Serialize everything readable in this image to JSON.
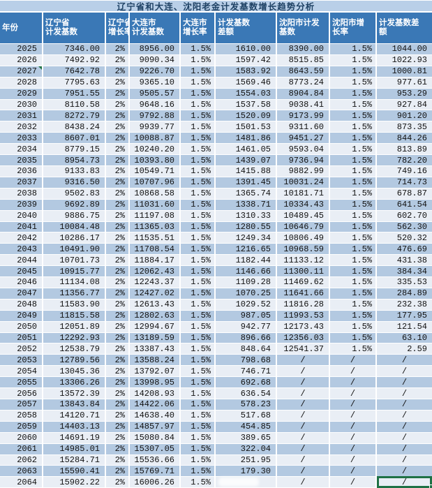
{
  "title": "辽宁省和大连、沈阳老金计发基数增长趋势分析",
  "colors": {
    "title_bg": "#B9CFE8",
    "title_text": "#1E4164",
    "header_bg": "#3A78B6",
    "header_text": "#FFFFFF",
    "row_band_dark": "#B3C9E1",
    "row_band_light": "#E9EEF5",
    "gridline": "#FFFFFF",
    "selection_green": "#1E7145",
    "comment_marker_green": "#217346"
  },
  "table": {
    "columns": [
      {
        "id": "year",
        "label_line1": "年份",
        "label_line2": ""
      },
      {
        "id": "ln_base",
        "label_line1": "辽宁省",
        "label_line2": "计发基数"
      },
      {
        "id": "ln_rate",
        "label_line1": "辽宁省",
        "label_line2": "增长率"
      },
      {
        "id": "dl_base",
        "label_line1": "大连市",
        "label_line2": "计发基数"
      },
      {
        "id": "dl_rate",
        "label_line1": "大连市",
        "label_line2": "增长率"
      },
      {
        "id": "dl_diff",
        "label_line1": "计发基数",
        "label_line2": "差额"
      },
      {
        "id": "sy_base",
        "label_line1": "沈阳市计发",
        "label_line2": "基数"
      },
      {
        "id": "sy_rate",
        "label_line1": "沈阳市增",
        "label_line2": "长率"
      },
      {
        "id": "sy_diff",
        "label_line1": "计发基数差",
        "label_line2": "额"
      }
    ],
    "rows": [
      [
        "2025",
        "7346.00",
        "2%",
        "8956.00",
        "1.5%",
        "1610.00",
        "8390.00",
        "1.5%",
        "1044.00"
      ],
      [
        "2026",
        "7492.92",
        "2%",
        "9090.34",
        "1.5%",
        "1597.42",
        "8515.85",
        "1.5%",
        "1022.93"
      ],
      [
        "2027",
        "7642.78",
        "2%",
        "9226.70",
        "1.5%",
        "1583.92",
        "8643.59",
        "1.5%",
        "1000.81"
      ],
      [
        "2028",
        "7795.63",
        "2%",
        "9365.10",
        "1.5%",
        "1569.46",
        "8773.24",
        "1.5%",
        "977.61"
      ],
      [
        "2029",
        "7951.55",
        "2%",
        "9505.57",
        "1.5%",
        "1554.03",
        "8904.84",
        "1.5%",
        "953.29"
      ],
      [
        "2030",
        "8110.58",
        "2%",
        "9648.16",
        "1.5%",
        "1537.58",
        "9038.41",
        "1.5%",
        "927.84"
      ],
      [
        "2031",
        "8272.79",
        "2%",
        "9792.88",
        "1.5%",
        "1520.09",
        "9173.99",
        "1.5%",
        "901.20"
      ],
      [
        "2032",
        "8438.24",
        "2%",
        "9939.77",
        "1.5%",
        "1501.53",
        "9311.60",
        "1.5%",
        "873.35"
      ],
      [
        "2033",
        "8607.01",
        "2%",
        "10088.87",
        "1.5%",
        "1481.86",
        "9451.27",
        "1.5%",
        "844.26"
      ],
      [
        "2034",
        "8779.15",
        "2%",
        "10240.20",
        "1.5%",
        "1461.05",
        "9593.04",
        "1.5%",
        "813.89"
      ],
      [
        "2035",
        "8954.73",
        "2%",
        "10393.80",
        "1.5%",
        "1439.07",
        "9736.94",
        "1.5%",
        "782.20"
      ],
      [
        "2036",
        "9133.83",
        "2%",
        "10549.71",
        "1.5%",
        "1415.88",
        "9882.99",
        "1.5%",
        "749.16"
      ],
      [
        "2037",
        "9316.50",
        "2%",
        "10707.96",
        "1.5%",
        "1391.45",
        "10031.24",
        "1.5%",
        "714.73"
      ],
      [
        "2038",
        "9502.83",
        "2%",
        "10868.58",
        "1.5%",
        "1365.74",
        "10181.71",
        "1.5%",
        "678.87"
      ],
      [
        "2039",
        "9692.89",
        "2%",
        "11031.60",
        "1.5%",
        "1338.71",
        "10334.43",
        "1.5%",
        "641.54"
      ],
      [
        "2040",
        "9886.75",
        "2%",
        "11197.08",
        "1.5%",
        "1310.33",
        "10489.45",
        "1.5%",
        "602.70"
      ],
      [
        "2041",
        "10084.48",
        "2%",
        "11365.03",
        "1.5%",
        "1280.55",
        "10646.79",
        "1.5%",
        "562.30"
      ],
      [
        "2042",
        "10286.17",
        "2%",
        "11535.51",
        "1.5%",
        "1249.34",
        "10806.49",
        "1.5%",
        "520.32"
      ],
      [
        "2043",
        "10491.90",
        "2%",
        "11708.54",
        "1.5%",
        "1216.65",
        "10968.59",
        "1.5%",
        "476.69"
      ],
      [
        "2044",
        "10701.73",
        "2%",
        "11884.17",
        "1.5%",
        "1182.44",
        "11133.12",
        "1.5%",
        "431.38"
      ],
      [
        "2045",
        "10915.77",
        "2%",
        "12062.43",
        "1.5%",
        "1146.66",
        "11300.11",
        "1.5%",
        "384.34"
      ],
      [
        "2046",
        "11134.08",
        "2%",
        "12243.37",
        "1.5%",
        "1109.28",
        "11469.62",
        "1.5%",
        "335.53"
      ],
      [
        "2047",
        "11356.77",
        "2%",
        "12427.02",
        "1.5%",
        "1070.25",
        "11641.66",
        "1.5%",
        "284.89"
      ],
      [
        "2048",
        "11583.90",
        "2%",
        "12613.43",
        "1.5%",
        "1029.52",
        "11816.28",
        "1.5%",
        "232.38"
      ],
      [
        "2049",
        "11815.58",
        "2%",
        "12802.63",
        "1.5%",
        "987.05",
        "11993.53",
        "1.5%",
        "177.95"
      ],
      [
        "2050",
        "12051.89",
        "2%",
        "12994.67",
        "1.5%",
        "942.77",
        "12173.43",
        "1.5%",
        "121.54"
      ],
      [
        "2051",
        "12292.93",
        "2%",
        "13189.59",
        "1.5%",
        "896.66",
        "12356.03",
        "1.5%",
        "63.10"
      ],
      [
        "2052",
        "12538.79",
        "2%",
        "13387.43",
        "1.5%",
        "848.64",
        "12541.37",
        "1.5%",
        "2.59"
      ],
      [
        "2053",
        "12789.56",
        "2%",
        "13588.24",
        "1.5%",
        "798.68",
        "/",
        "/",
        "/"
      ],
      [
        "2054",
        "13045.36",
        "2%",
        "13792.07",
        "1.5%",
        "746.71",
        "/",
        "/",
        "/"
      ],
      [
        "2055",
        "13306.26",
        "2%",
        "13998.95",
        "1.5%",
        "692.68",
        "/",
        "/",
        "/"
      ],
      [
        "2056",
        "13572.39",
        "2%",
        "14208.93",
        "1.5%",
        "636.54",
        "/",
        "/",
        "/"
      ],
      [
        "2057",
        "13843.84",
        "2%",
        "14422.06",
        "1.5%",
        "578.23",
        "/",
        "/",
        "/"
      ],
      [
        "2058",
        "14120.71",
        "2%",
        "14638.40",
        "1.5%",
        "517.68",
        "/",
        "/",
        "/"
      ],
      [
        "2059",
        "14403.13",
        "2%",
        "14857.97",
        "1.5%",
        "454.85",
        "/",
        "/",
        "/"
      ],
      [
        "2060",
        "14691.19",
        "2%",
        "15080.84",
        "1.5%",
        "389.65",
        "/",
        "/",
        "/"
      ],
      [
        "2061",
        "14985.01",
        "2%",
        "15307.05",
        "1.5%",
        "322.04",
        "/",
        "/",
        "/"
      ],
      [
        "2062",
        "15284.71",
        "2%",
        "15536.66",
        "1.5%",
        "251.95",
        "/",
        "/",
        "/"
      ],
      [
        "2063",
        "15590.41",
        "2%",
        "15769.71",
        "1.5%",
        "179.30",
        "/",
        "/",
        "/"
      ],
      [
        "2064",
        "15902.22",
        "2%",
        "16006.26",
        "1.5%",
        "",
        "/",
        "/",
        "/"
      ]
    ],
    "no_data_placeholder": "/"
  },
  "annotations": {
    "comment_marker_cell": {
      "row_year": "2027",
      "column": "year"
    },
    "blank_smudged_cell": {
      "row_year": "2064",
      "column": "dl_diff"
    },
    "selected_cell": {
      "row_year": "2064",
      "column": "sy_diff",
      "value": "/"
    }
  }
}
